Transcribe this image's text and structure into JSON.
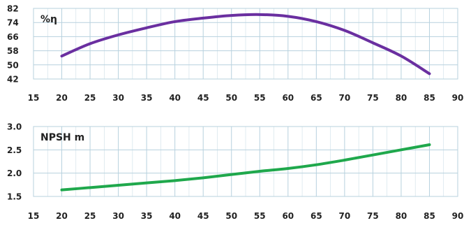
{
  "chart_data": [
    {
      "type": "line",
      "label": "%η",
      "colors": {
        "line": "#6a2fa0",
        "grid": "#b7d1de",
        "axis_text": "#222222"
      },
      "grid": true,
      "xlim": [
        15,
        90
      ],
      "ylim": [
        42,
        82
      ],
      "x_ticks": [
        15,
        20,
        25,
        30,
        35,
        40,
        45,
        50,
        55,
        60,
        65,
        70,
        75,
        80,
        85,
        90
      ],
      "y_ticks": [
        42,
        50,
        58,
        66,
        74,
        82
      ],
      "series": [
        {
          "x": [
            20,
            25,
            30,
            35,
            40,
            45,
            50,
            55,
            60,
            65,
            70,
            75,
            80,
            85
          ],
          "y": [
            55,
            62,
            67,
            71,
            74.5,
            76.5,
            78,
            78.5,
            77.5,
            74.5,
            69.5,
            62.5,
            55,
            45
          ]
        }
      ]
    },
    {
      "type": "line",
      "label": "NPSH m",
      "colors": {
        "line": "#1fa84c",
        "grid": "#b7d1de",
        "axis_text": "#222222"
      },
      "grid": true,
      "xlim": [
        15,
        90
      ],
      "ylim": [
        1.5,
        3.0
      ],
      "x_ticks": [
        15,
        20,
        25,
        30,
        35,
        40,
        45,
        50,
        55,
        60,
        65,
        70,
        75,
        80,
        85,
        90
      ],
      "y_ticks": [
        1.5,
        2.0,
        2.5,
        3.0
      ],
      "series": [
        {
          "x": [
            20,
            25,
            30,
            35,
            40,
            45,
            50,
            55,
            60,
            65,
            70,
            75,
            80,
            85
          ],
          "y": [
            1.64,
            1.69,
            1.74,
            1.79,
            1.84,
            1.9,
            1.97,
            2.04,
            2.1,
            2.18,
            2.28,
            2.39,
            2.5,
            2.61
          ]
        }
      ]
    }
  ]
}
